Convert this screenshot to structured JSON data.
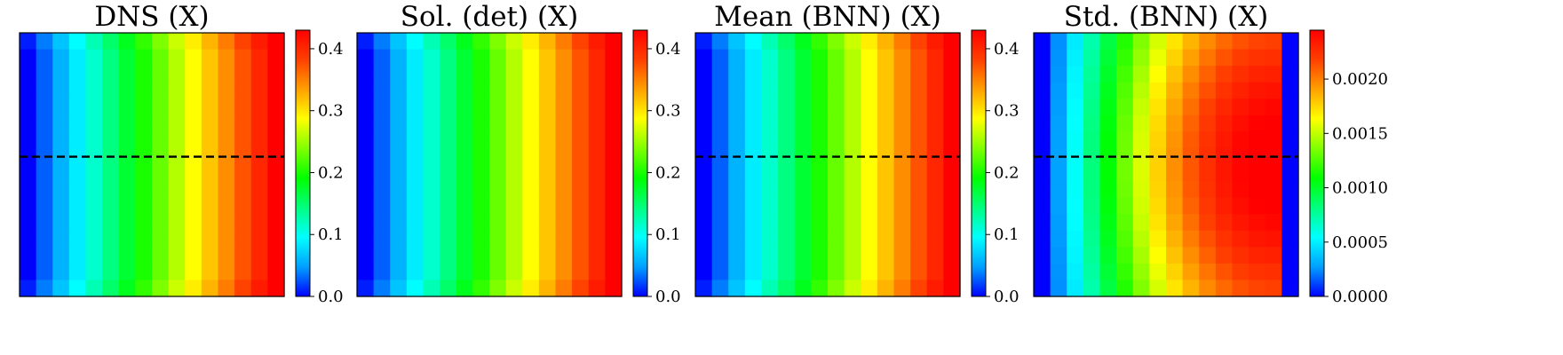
{
  "figure": {
    "colormap": [
      "#0000ff",
      "#00a0ff",
      "#00ffff",
      "#00ff80",
      "#00ff00",
      "#80ff00",
      "#ffff00",
      "#ffa000",
      "#ff4000",
      "#ff0000"
    ]
  },
  "chart_data": [
    {
      "type": "heatmap",
      "title": "DNS (X)",
      "grid": [
        16,
        16
      ],
      "field": "x-gradient",
      "value_range": [
        0.0,
        0.43
      ],
      "dashed_line_fraction": 0.47,
      "colorbar": {
        "ticks": [
          0.0,
          0.1,
          0.2,
          0.3,
          0.4
        ],
        "tick_labels": [
          "0.0",
          "0.1",
          "0.2",
          "0.3",
          "0.4"
        ]
      }
    },
    {
      "type": "heatmap",
      "title": "Sol. (det) (X)",
      "grid": [
        16,
        16
      ],
      "field": "x-gradient",
      "value_range": [
        0.0,
        0.43
      ],
      "dashed_line_fraction": null,
      "colorbar": {
        "ticks": [
          0.0,
          0.1,
          0.2,
          0.3,
          0.4
        ],
        "tick_labels": [
          "0.0",
          "0.1",
          "0.2",
          "0.3",
          "0.4"
        ]
      }
    },
    {
      "type": "heatmap",
      "title": "Mean (BNN) (X)",
      "grid": [
        16,
        16
      ],
      "field": "x-gradient",
      "value_range": [
        0.0,
        0.43
      ],
      "dashed_line_fraction": 0.47,
      "colorbar": {
        "ticks": [
          0.0,
          0.1,
          0.2,
          0.3,
          0.4
        ],
        "tick_labels": [
          "0.0",
          "0.1",
          "0.2",
          "0.3",
          "0.4"
        ]
      }
    },
    {
      "type": "heatmap",
      "title": "Std. (BNN) (X)",
      "grid": [
        16,
        16
      ],
      "field": "std-profile",
      "value_range": [
        0.0,
        0.00245
      ],
      "dashed_line_fraction": 0.47,
      "colorbar": {
        "ticks": [
          0.0,
          0.0005,
          0.001,
          0.0015,
          0.002
        ],
        "tick_labels": [
          "0.0000",
          "0.0005",
          "0.0010",
          "0.0015",
          "0.0020"
        ]
      }
    }
  ]
}
